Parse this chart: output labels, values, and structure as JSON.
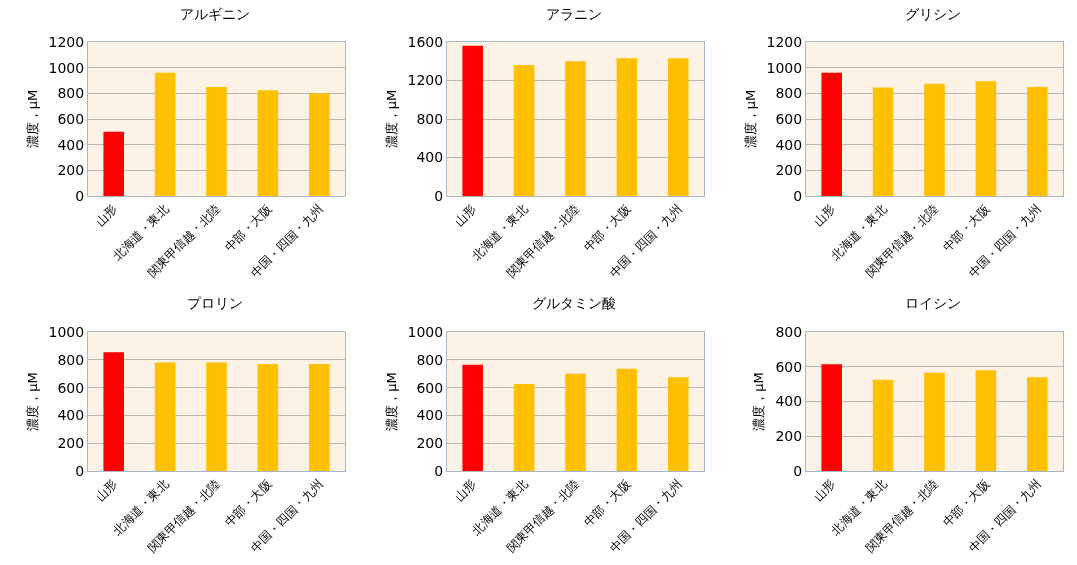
{
  "chart_data": [
    {
      "type": "bar",
      "title": "アルギニン",
      "ylabel": "濃度，μM",
      "categories": [
        "山形",
        "北海道・東北",
        "関東甲信越・北陸",
        "中部・大阪",
        "中国・四国・九州"
      ],
      "values": [
        500,
        960,
        850,
        825,
        800
      ],
      "colors": [
        "#ff0000",
        "#ffc000",
        "#ffc000",
        "#ffc000",
        "#ffc000"
      ],
      "ylim": [
        0,
        1200
      ],
      "yticks": [
        0,
        200,
        400,
        600,
        800,
        1000,
        1200
      ],
      "grid": "y"
    },
    {
      "type": "bar",
      "title": "アラニン",
      "ylabel": "濃度，μM",
      "categories": [
        "山形",
        "北海道・東北",
        "関東甲信越・北陸",
        "中部・大阪",
        "中国・四国・九州"
      ],
      "values": [
        1560,
        1360,
        1400,
        1430,
        1430
      ],
      "colors": [
        "#ff0000",
        "#ffc000",
        "#ffc000",
        "#ffc000",
        "#ffc000"
      ],
      "ylim": [
        0,
        1600
      ],
      "yticks": [
        0,
        400,
        800,
        1200,
        1600
      ],
      "grid": "y"
    },
    {
      "type": "bar",
      "title": "グリシン",
      "ylabel": "濃度，μM",
      "categories": [
        "山形",
        "北海道・東北",
        "関東甲信越・北陸",
        "中部・大阪",
        "中国・四国・九州"
      ],
      "values": [
        960,
        845,
        875,
        895,
        850
      ],
      "colors": [
        "#ff0000",
        "#ffc000",
        "#ffc000",
        "#ffc000",
        "#ffc000"
      ],
      "ylim": [
        0,
        1200
      ],
      "yticks": [
        0,
        200,
        400,
        600,
        800,
        1000,
        1200
      ],
      "grid": "y"
    },
    {
      "type": "bar",
      "title": "プロリン",
      "ylabel": "濃度，μM",
      "categories": [
        "山形",
        "北海道・東北",
        "関東甲信越・北陸",
        "中部・大阪",
        "中国・四国・九州"
      ],
      "values": [
        855,
        780,
        780,
        770,
        770
      ],
      "colors": [
        "#ff0000",
        "#ffc000",
        "#ffc000",
        "#ffc000",
        "#ffc000"
      ],
      "ylim": [
        0,
        1000
      ],
      "yticks": [
        0,
        200,
        400,
        600,
        800,
        1000
      ],
      "grid": "y"
    },
    {
      "type": "bar",
      "title": "グルタミン酸",
      "ylabel": "濃度，μM",
      "categories": [
        "山形",
        "北海道・東北",
        "関東甲信越・北陸",
        "中部・大阪",
        "中国・四国・九州"
      ],
      "values": [
        765,
        625,
        700,
        735,
        675
      ],
      "colors": [
        "#ff0000",
        "#ffc000",
        "#ffc000",
        "#ffc000",
        "#ffc000"
      ],
      "ylim": [
        0,
        1000
      ],
      "yticks": [
        0,
        200,
        400,
        600,
        800,
        1000
      ],
      "grid": "y"
    },
    {
      "type": "bar",
      "title": "ロイシン",
      "ylabel": "濃度，μM",
      "categories": [
        "山形",
        "北海道・東北",
        "関東甲信越・北陸",
        "中部・大阪",
        "中国・四国・九州"
      ],
      "values": [
        615,
        525,
        565,
        580,
        540
      ],
      "colors": [
        "#ff0000",
        "#ffc000",
        "#ffc000",
        "#ffc000",
        "#ffc000"
      ],
      "ylim": [
        0,
        800
      ],
      "yticks": [
        0,
        200,
        400,
        600,
        800
      ],
      "grid": "y"
    }
  ]
}
